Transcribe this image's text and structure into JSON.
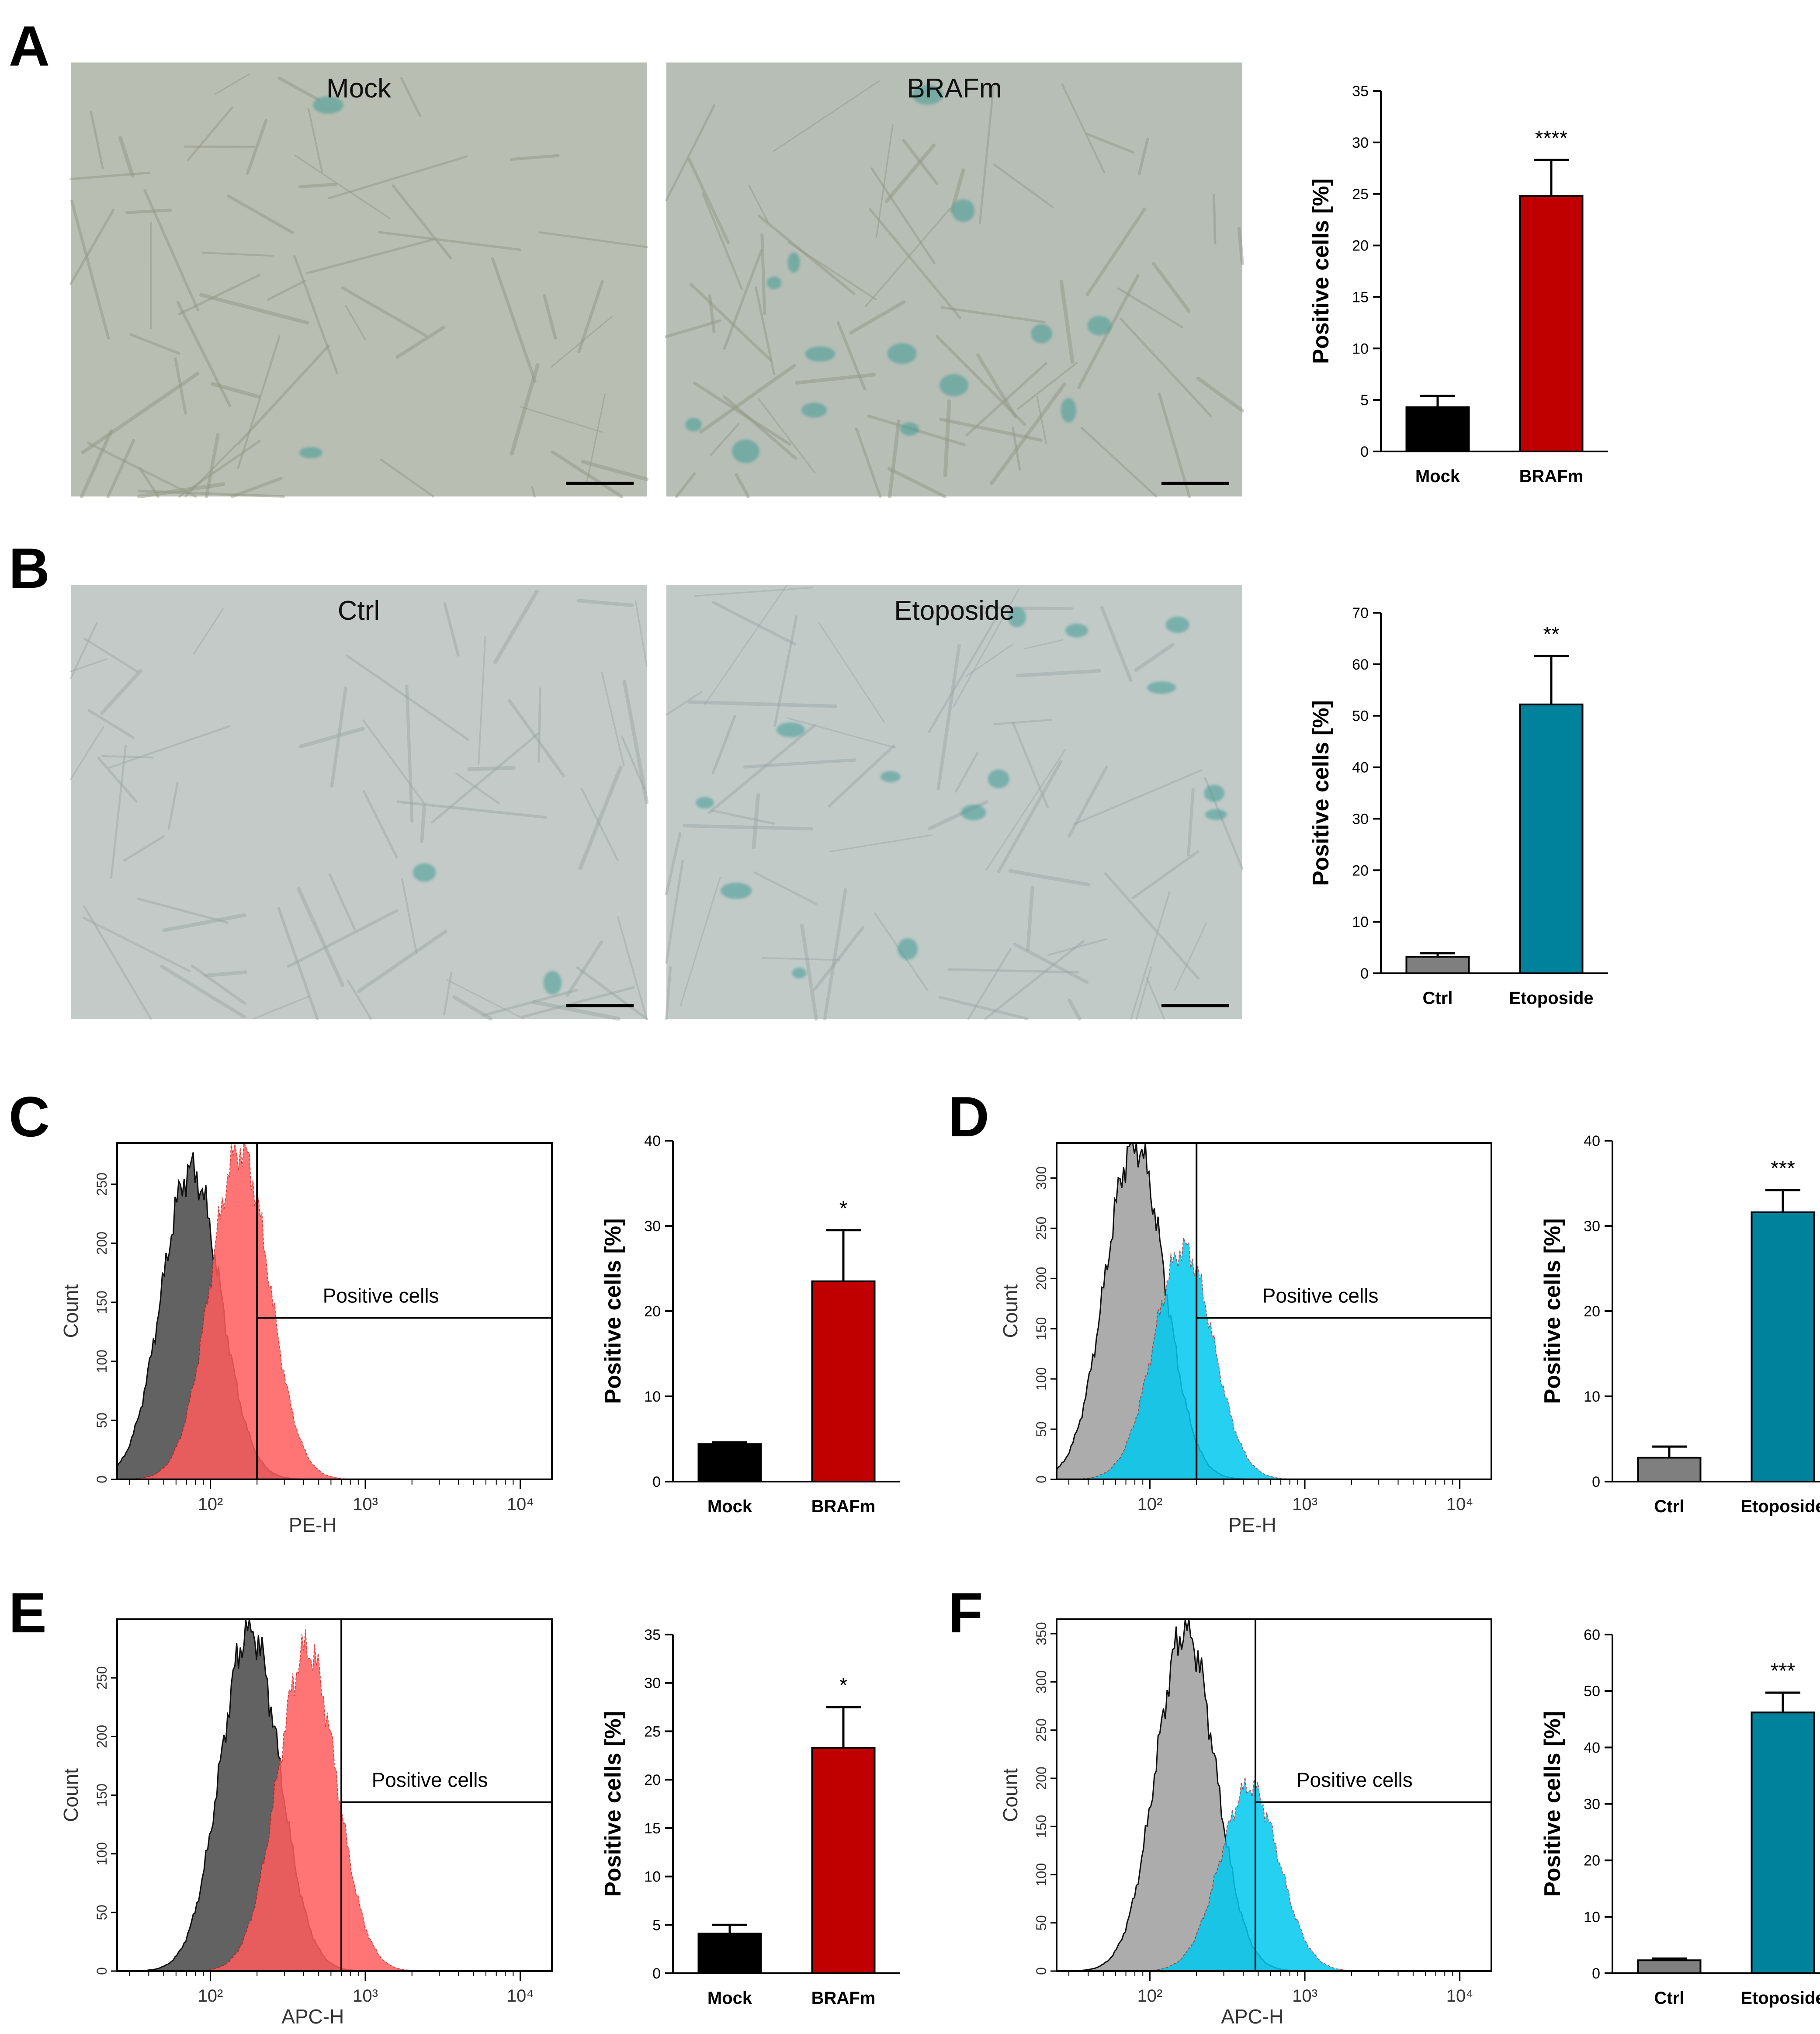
{
  "figure": {
    "panels": [
      "A",
      "B",
      "C",
      "D",
      "E",
      "F"
    ],
    "micrographs": [
      {
        "panel": "A",
        "label": "Mock",
        "tint": "#b9beb2",
        "scale_bar": true
      },
      {
        "panel": "A",
        "label": "BRAFm",
        "tint": "#b7beb6",
        "scale_bar": true
      },
      {
        "panel": "B",
        "label": "Ctrl",
        "tint": "#c3cac7",
        "scale_bar": true
      },
      {
        "panel": "B",
        "label": "Etoposide",
        "tint": "#c2cac8",
        "scale_bar": true
      }
    ],
    "colors": {
      "black_bar": "#000000",
      "red_bar": "#c00000",
      "gray_bar": "#7f7f7f",
      "teal_bar": "#00829c",
      "hist_gray_dark": "#5a5a5a",
      "hist_gray_light": "#a8a8a8",
      "hist_red": "#ff5c5c",
      "hist_red_dark": "#e82020",
      "hist_cyan": "#00c8ee"
    }
  },
  "chart_data": [
    {
      "id": "A",
      "type": "bar",
      "categories": [
        "Mock",
        "BRAFm"
      ],
      "values": [
        4.3,
        24.8
      ],
      "errors": [
        1.1,
        3.5
      ],
      "colors": [
        "#000000",
        "#c00000"
      ],
      "ylabel": "Positive cells [%]",
      "ylim": [
        0,
        35
      ],
      "yticks": [
        "0",
        "5",
        "10",
        "15",
        "20",
        "25",
        "30",
        "35"
      ],
      "significance": "****"
    },
    {
      "id": "B",
      "type": "bar",
      "categories": [
        "Ctrl",
        "Etoposide"
      ],
      "values": [
        3.2,
        52.2
      ],
      "errors": [
        0.7,
        9.4
      ],
      "colors": [
        "#7f7f7f",
        "#00829c"
      ],
      "ylabel": "Positive cells [%]",
      "ylim": [
        0,
        70
      ],
      "yticks": [
        "0",
        "10",
        "20",
        "30",
        "40",
        "50",
        "60",
        "70"
      ],
      "significance": "**"
    },
    {
      "id": "C-hist",
      "type": "histogram",
      "xlabel": "PE-H",
      "ylabel": "Count",
      "xscale": "log",
      "xlim": [
        25,
        16000
      ],
      "ylim": [
        0,
        285
      ],
      "yticks": [
        "0",
        "50",
        "100",
        "150",
        "200",
        "250"
      ],
      "xticks": [
        "10²",
        "10³",
        "10⁴"
      ],
      "gate_x": 200,
      "gate_label": "Positive cells",
      "series": [
        {
          "name": "Mock",
          "color": "#5a5a5a",
          "peak_x": 75,
          "peak_count": 262
        },
        {
          "name": "BRAFm",
          "color": "#ff5c5c",
          "peak_x": 155,
          "peak_count": 280
        }
      ]
    },
    {
      "id": "C",
      "type": "bar",
      "categories": [
        "Mock",
        "BRAFm"
      ],
      "values": [
        4.4,
        23.5
      ],
      "errors": [
        0.2,
        6.0
      ],
      "colors": [
        "#000000",
        "#c00000"
      ],
      "ylabel": "Positive cells [%]",
      "ylim": [
        0,
        40
      ],
      "yticks": [
        "0",
        "10",
        "20",
        "30",
        "40"
      ],
      "significance": "*"
    },
    {
      "id": "D-hist",
      "type": "histogram",
      "xlabel": "PE-H",
      "ylabel": "Count",
      "xscale": "log",
      "xlim": [
        25,
        16000
      ],
      "ylim": [
        0,
        335
      ],
      "yticks": [
        "0",
        "50",
        "100",
        "150",
        "200",
        "250",
        "300"
      ],
      "xticks": [
        "10²",
        "10³",
        "10⁴"
      ],
      "gate_x": 200,
      "gate_label": "Positive cells",
      "series": [
        {
          "name": "Ctrl",
          "color": "#a8a8a8",
          "peak_x": 80,
          "peak_count": 335
        },
        {
          "name": "Etoposide",
          "color": "#00c8ee",
          "peak_x": 165,
          "peak_count": 230
        }
      ]
    },
    {
      "id": "D",
      "type": "bar",
      "categories": [
        "Ctrl",
        "Etoposide"
      ],
      "values": [
        2.8,
        31.6
      ],
      "errors": [
        1.3,
        2.6
      ],
      "colors": [
        "#7f7f7f",
        "#00829c"
      ],
      "ylabel": "Positive cells [%]",
      "ylim": [
        0,
        40
      ],
      "yticks": [
        "0",
        "10",
        "20",
        "30",
        "40"
      ],
      "significance": "***"
    },
    {
      "id": "E-hist",
      "type": "histogram",
      "xlabel": "APC-H",
      "ylabel": "Count",
      "xscale": "log",
      "xlim": [
        25,
        16000
      ],
      "ylim": [
        0,
        300
      ],
      "yticks": [
        "0",
        "50",
        "100",
        "150",
        "200",
        "250"
      ],
      "xticks": [
        "10²",
        "10³",
        "10⁴"
      ],
      "gate_x": 700,
      "gate_label": "Positive cells",
      "series": [
        {
          "name": "Mock",
          "color": "#5a5a5a",
          "peak_x": 180,
          "peak_count": 292
        },
        {
          "name": "BRAFm",
          "color": "#ff5c5c",
          "peak_x": 420,
          "peak_count": 275
        }
      ]
    },
    {
      "id": "E",
      "type": "bar",
      "categories": [
        "Mock",
        "BRAFm"
      ],
      "values": [
        4.1,
        23.3
      ],
      "errors": [
        0.9,
        4.2
      ],
      "colors": [
        "#000000",
        "#c00000"
      ],
      "ylabel": "Positive cells [%]",
      "ylim": [
        0,
        35
      ],
      "yticks": [
        "0",
        "5",
        "10",
        "15",
        "20",
        "25",
        "30",
        "35"
      ],
      "significance": "*"
    },
    {
      "id": "F-hist",
      "type": "histogram",
      "xlabel": "APC-H",
      "ylabel": "Count",
      "xscale": "log",
      "xlim": [
        25,
        16000
      ],
      "ylim": [
        0,
        365
      ],
      "yticks": [
        "0",
        "50",
        "100",
        "150",
        "200",
        "250",
        "300",
        "350"
      ],
      "xticks": [
        "10²",
        "10³",
        "10⁴"
      ],
      "gate_x": 480,
      "gate_label": "Positive cells",
      "series": [
        {
          "name": "Ctrl",
          "color": "#a8a8a8",
          "peak_x": 170,
          "peak_count": 355
        },
        {
          "name": "Etoposide",
          "color": "#00c8ee",
          "peak_x": 440,
          "peak_count": 192
        }
      ]
    },
    {
      "id": "F",
      "type": "bar",
      "categories": [
        "Ctrl",
        "Etoposide"
      ],
      "values": [
        2.3,
        46.2
      ],
      "errors": [
        0.3,
        3.5
      ],
      "colors": [
        "#7f7f7f",
        "#00829c"
      ],
      "ylabel": "Positive cells [%]",
      "ylim": [
        0,
        60
      ],
      "yticks": [
        "0",
        "10",
        "20",
        "30",
        "40",
        "50",
        "60"
      ],
      "significance": "***"
    }
  ]
}
